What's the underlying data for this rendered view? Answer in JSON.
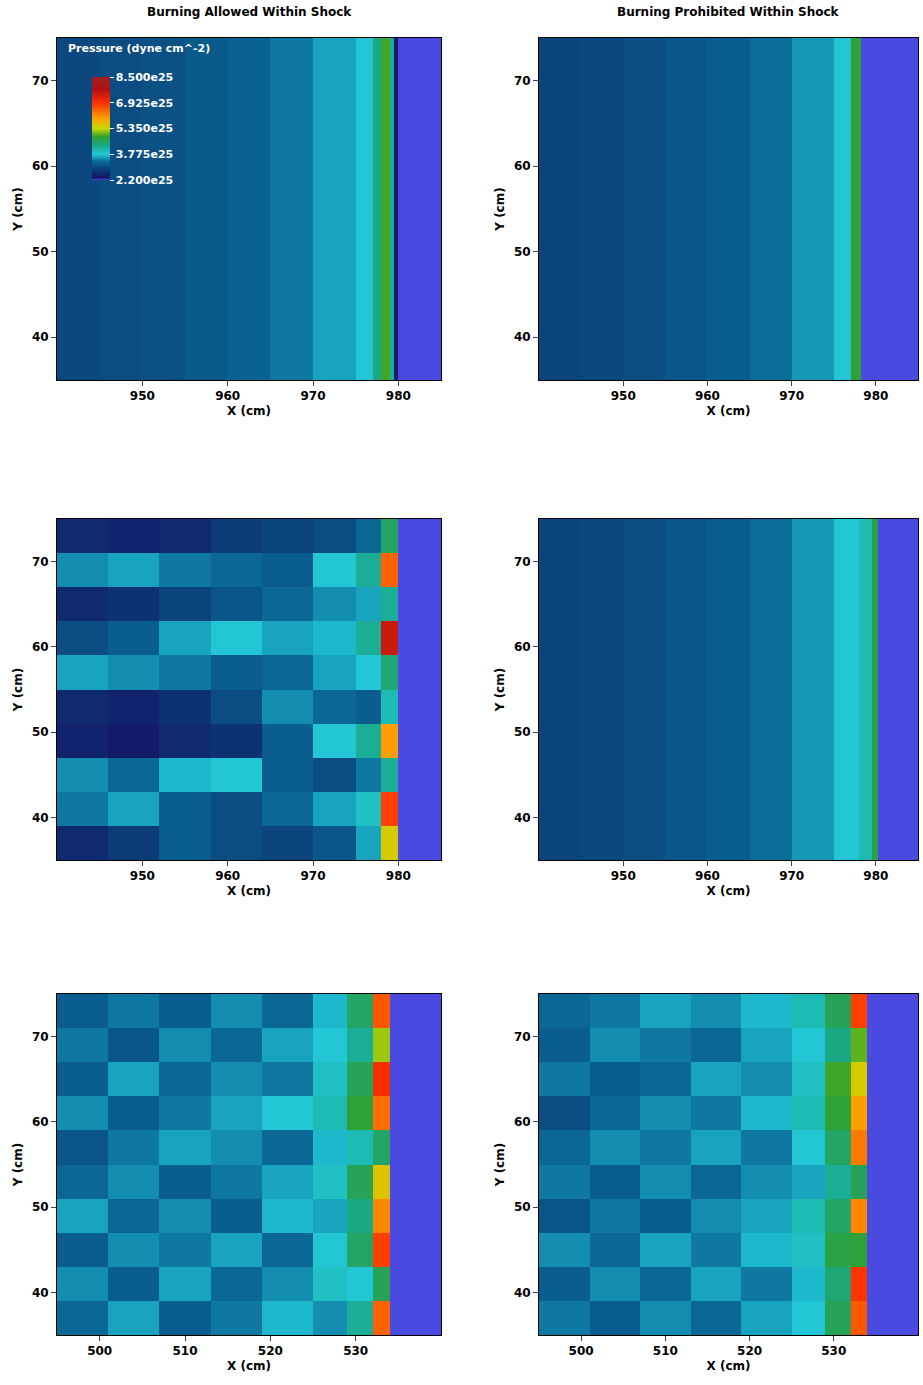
{
  "chart_data": [
    {
      "type": "heatmap",
      "title": "Burning Allowed Within Shock",
      "xlabel": "X (cm)",
      "ylabel": "Y (cm)",
      "colorbar": {
        "title": "Pressure (dyne cm^-2)",
        "range": [
          2.2e+25,
          8.5e+25
        ],
        "ticks": [
          {
            "value": 2.2e+25,
            "label": "2.200e25"
          },
          {
            "value": 3.775e+25,
            "label": "3.775e25"
          },
          {
            "value": 5.35e+25,
            "label": "5.350e25"
          },
          {
            "value": 6.925e+25,
            "label": "6.925e25"
          },
          {
            "value": 8.5e+25,
            "label": "8.500e25"
          }
        ]
      },
      "xlim": [
        940,
        985
      ],
      "xticks": [
        950,
        960,
        970,
        980
      ],
      "ylim": [
        35,
        75
      ],
      "yticks": [
        40,
        50,
        60,
        70
      ],
      "x": [
        940,
        945,
        950,
        955,
        960,
        965,
        970,
        975,
        977,
        978,
        979,
        979.5,
        980,
        985
      ],
      "y": [
        35,
        75
      ],
      "z": [
        [
          2.95e+25,
          3e+25,
          3.05e+25,
          3.15e+25,
          3.25e+25,
          3.4e+25,
          3.6e+25,
          3.8e+25,
          4.3e+25,
          4.9e+25,
          4.2e+25,
          2.4e+25,
          1.5e+25
        ]
      ]
    },
    {
      "type": "heatmap",
      "title": "Burning Prohibited Within Shock",
      "xlabel": "X (cm)",
      "ylabel": "Y (cm)",
      "xlim": [
        940,
        985
      ],
      "xticks": [
        950,
        960,
        970,
        980
      ],
      "ylim": [
        35,
        75
      ],
      "yticks": [
        40,
        50,
        60,
        70
      ],
      "x": [
        940,
        945,
        950,
        955,
        960,
        965,
        970,
        975,
        977,
        978.2,
        985
      ],
      "y": [
        35,
        75
      ],
      "z": [
        [
          2.9e+25,
          2.95e+25,
          3e+25,
          3.1e+25,
          3.2e+25,
          3.35e+25,
          3.55e+25,
          3.8e+25,
          4.8e+25,
          1.5e+25
        ]
      ]
    },
    {
      "type": "heatmap",
      "xlabel": "X (cm)",
      "ylabel": "Y (cm)",
      "xlim": [
        940,
        985
      ],
      "xticks": [
        950,
        960,
        970,
        980
      ],
      "ylim": [
        35,
        75
      ],
      "yticks": [
        40,
        50,
        60,
        70
      ],
      "x": [
        940,
        946,
        952,
        958,
        964,
        970,
        975,
        978,
        980,
        985
      ],
      "y": [
        35,
        39,
        43,
        47,
        51,
        55,
        59,
        63,
        67,
        71,
        75
      ],
      "z": [
        [
          2.6e+25,
          2.8e+25,
          3.2e+25,
          3e+25,
          2.9e+25,
          3.1e+25,
          3.6e+25,
          5.5e+25,
          1.5e+25
        ],
        [
          3.4e+25,
          3.6e+25,
          3.2e+25,
          3e+25,
          3.3e+25,
          3.6e+25,
          3.9e+25,
          6.8e+25,
          1.5e+25
        ],
        [
          3.5e+25,
          3.3e+25,
          3.7e+25,
          3.8e+25,
          3.2e+25,
          3e+25,
          3.4e+25,
          4.2e+25,
          1.5e+25
        ],
        [
          2.5e+25,
          2.4e+25,
          2.6e+25,
          2.7e+25,
          3.2e+25,
          3.8e+25,
          4.2e+25,
          6e+25,
          1.5e+25
        ],
        [
          2.6e+25,
          2.5e+25,
          2.7e+25,
          3e+25,
          3.5e+25,
          3.3e+25,
          3.2e+25,
          4e+25,
          1.5e+25
        ],
        [
          3.6e+25,
          3.5e+25,
          3.4e+25,
          3.2e+25,
          3.3e+25,
          3.6e+25,
          3.8e+25,
          4.4e+25,
          1.5e+25
        ],
        [
          3e+25,
          3.2e+25,
          3.6e+25,
          3.8e+25,
          3.6e+25,
          3.7e+25,
          4.2e+25,
          7.5e+25,
          1.5e+25
        ],
        [
          2.6e+25,
          2.7e+25,
          2.9e+25,
          3.1e+25,
          3.3e+25,
          3.5e+25,
          3.6e+25,
          4.2e+25,
          1.5e+25
        ],
        [
          3.5e+25,
          3.6e+25,
          3.4e+25,
          3.3e+25,
          3.2e+25,
          3.8e+25,
          4.2e+25,
          6.5e+25,
          1.5e+25
        ],
        [
          2.6e+25,
          2.5e+25,
          2.6e+25,
          2.8e+25,
          2.9e+25,
          3e+25,
          3.3e+25,
          4.5e+25,
          1.5e+25
        ]
      ]
    },
    {
      "type": "heatmap",
      "xlabel": "X (cm)",
      "ylabel": "Y (cm)",
      "xlim": [
        940,
        985
      ],
      "xticks": [
        950,
        960,
        970,
        980
      ],
      "ylim": [
        35,
        75
      ],
      "yticks": [
        40,
        50,
        60,
        70
      ],
      "x": [
        940,
        945,
        950,
        955,
        960,
        965,
        970,
        975,
        978,
        979.5,
        980.2,
        985
      ],
      "y": [
        35,
        75
      ],
      "z": [
        [
          2.9e+25,
          2.95e+25,
          3e+25,
          3.1e+25,
          3.2e+25,
          3.35e+25,
          3.55e+25,
          3.8e+25,
          4e+25,
          4.7e+25,
          1.5e+25
        ]
      ]
    },
    {
      "type": "heatmap",
      "xlabel": "X (cm)",
      "ylabel": "Y (cm)",
      "xlim": [
        495,
        540
      ],
      "xticks": [
        500,
        510,
        520,
        530
      ],
      "ylim": [
        35,
        75
      ],
      "yticks": [
        40,
        50,
        60,
        70
      ],
      "x": [
        495,
        501,
        507,
        513,
        519,
        525,
        529,
        532,
        534,
        540
      ],
      "y": [
        35,
        39,
        43,
        47,
        51,
        55,
        59,
        63,
        67,
        71,
        75
      ],
      "z": [
        [
          3.3e+25,
          3.6e+25,
          3.2e+25,
          3.4e+25,
          3.7e+25,
          3.5e+25,
          4.2e+25,
          6.5e+25,
          1.5e+25
        ],
        [
          3.5e+25,
          3.2e+25,
          3.6e+25,
          3.3e+25,
          3.5e+25,
          3.9e+25,
          3.8e+25,
          4.6e+25,
          1.5e+25
        ],
        [
          3.2e+25,
          3.5e+25,
          3.4e+25,
          3.6e+25,
          3.3e+25,
          3.8e+25,
          4.5e+25,
          6.8e+25,
          1.5e+25
        ],
        [
          3.6e+25,
          3.3e+25,
          3.5e+25,
          3.2e+25,
          3.7e+25,
          3.6e+25,
          4.3e+25,
          6.2e+25,
          1.5e+25
        ],
        [
          3.3e+25,
          3.5e+25,
          3.2e+25,
          3.4e+25,
          3.6e+25,
          3.9e+25,
          4.6e+25,
          5.6e+25,
          1.5e+25
        ],
        [
          3.1e+25,
          3.4e+25,
          3.6e+25,
          3.5e+25,
          3.3e+25,
          3.7e+25,
          4e+25,
          4.5e+25,
          1.5e+25
        ],
        [
          3.5e+25,
          3.2e+25,
          3.4e+25,
          3.6e+25,
          3.8e+25,
          4e+25,
          4.8e+25,
          6.4e+25,
          1.5e+25
        ],
        [
          3.2e+25,
          3.6e+25,
          3.3e+25,
          3.5e+25,
          3.4e+25,
          3.9e+25,
          4.6e+25,
          7e+25,
          1.5e+25
        ],
        [
          3.4e+25,
          3.1e+25,
          3.5e+25,
          3.3e+25,
          3.6e+25,
          3.8e+25,
          4.2e+25,
          5.2e+25,
          1.5e+25
        ],
        [
          3.2e+25,
          3.4e+25,
          3.2e+25,
          3.5e+25,
          3.3e+25,
          3.7e+25,
          4.5e+25,
          6.6e+25,
          1.5e+25
        ]
      ]
    },
    {
      "type": "heatmap",
      "xlabel": "X (cm)",
      "ylabel": "Y (cm)",
      "xlim": [
        495,
        540
      ],
      "xticks": [
        500,
        510,
        520,
        530
      ],
      "ylim": [
        35,
        75
      ],
      "yticks": [
        40,
        50,
        60,
        70
      ],
      "x": [
        495,
        501,
        507,
        513,
        519,
        525,
        529,
        532,
        534,
        540
      ],
      "y": [
        35,
        39,
        43,
        47,
        51,
        55,
        59,
        63,
        67,
        71,
        75
      ],
      "z": [
        [
          3.4e+25,
          3.2e+25,
          3.5e+25,
          3.3e+25,
          3.6e+25,
          3.8e+25,
          4.6e+25,
          6.6e+25,
          1.5e+25
        ],
        [
          3.2e+25,
          3.5e+25,
          3.3e+25,
          3.6e+25,
          3.4e+25,
          3.7e+25,
          4.4e+25,
          6.9e+25,
          1.5e+25
        ],
        [
          3.5e+25,
          3.3e+25,
          3.6e+25,
          3.4e+25,
          3.7e+25,
          3.9e+25,
          4.7e+25,
          4.8e+25,
          1.5e+25
        ],
        [
          3.1e+25,
          3.4e+25,
          3.2e+25,
          3.5e+25,
          3.6e+25,
          4e+25,
          4.5e+25,
          6.2e+25,
          1.5e+25
        ],
        [
          3.4e+25,
          3.2e+25,
          3.5e+25,
          3.3e+25,
          3.5e+25,
          3.6e+25,
          4.2e+25,
          4.6e+25,
          1.5e+25
        ],
        [
          3.3e+25,
          3.5e+25,
          3.4e+25,
          3.6e+25,
          3.4e+25,
          3.8e+25,
          4.5e+25,
          6.3e+25,
          1.5e+25
        ],
        [
          3e+25,
          3.3e+25,
          3.5e+25,
          3.4e+25,
          3.7e+25,
          4e+25,
          4.8e+25,
          6e+25,
          1.5e+25
        ],
        [
          3.4e+25,
          3.2e+25,
          3.3e+25,
          3.6e+25,
          3.5e+25,
          3.9e+25,
          4.9e+25,
          5.5e+25,
          1.5e+25
        ],
        [
          3.2e+25,
          3.5e+25,
          3.4e+25,
          3.3e+25,
          3.6e+25,
          3.8e+25,
          4.3e+25,
          5e+25,
          1.5e+25
        ],
        [
          3.3e+25,
          3.4e+25,
          3.6e+25,
          3.5e+25,
          3.7e+25,
          4e+25,
          4.6e+25,
          6.8e+25,
          1.5e+25
        ]
      ]
    }
  ]
}
